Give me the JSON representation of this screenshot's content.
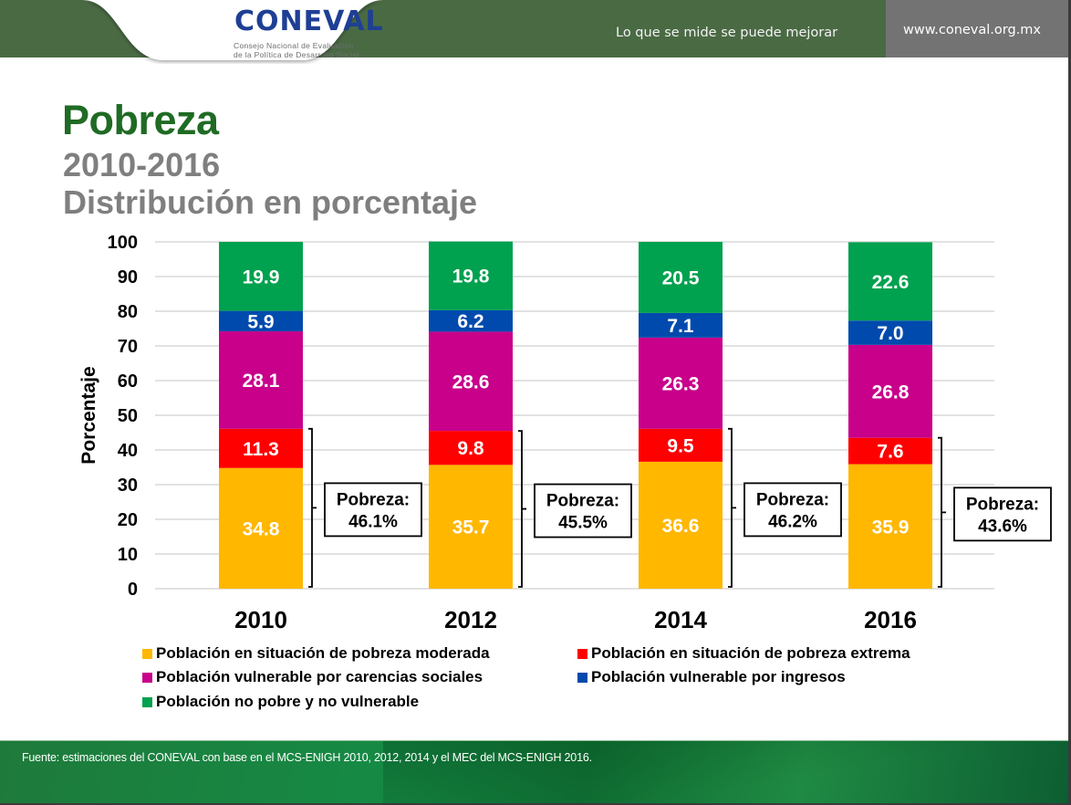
{
  "header": {
    "logo_main": "CONEVAL",
    "logo_sub_line1": "Consejo Nacional de Evaluación",
    "logo_sub_line2": "de la Política de Desarrollo Social",
    "tagline": "Lo que se mide se puede mejorar",
    "website": "www.coneval.org.mx",
    "colors": {
      "header_green": "#4a6a44",
      "header_gray": "#737373",
      "logo_blue": "#1e3f94",
      "logo_green": "#3cae48"
    }
  },
  "titles": {
    "title": "Pobreza",
    "subtitle_line1": "2010-2016",
    "subtitle_line2": "Distribución en porcentaje"
  },
  "chart_data": {
    "type": "bar",
    "stacked": true,
    "title": "Pobreza 2010-2016 Distribución en porcentaje",
    "xlabel": "",
    "ylabel": "Porcentaje",
    "ylim": [
      0,
      100
    ],
    "yticks": [
      0,
      10,
      20,
      30,
      40,
      50,
      60,
      70,
      80,
      90,
      100
    ],
    "grid": true,
    "categories": [
      "2010",
      "2012",
      "2014",
      "2016"
    ],
    "series": [
      {
        "name": "Población en situación de pobreza moderada",
        "color": "#ffb700",
        "values": [
          34.8,
          35.7,
          36.6,
          35.9
        ]
      },
      {
        "name": "Población en situación de pobreza extrema",
        "color": "#ff0000",
        "values": [
          11.3,
          9.8,
          9.5,
          7.6
        ]
      },
      {
        "name": "Población vulnerable por carencias sociales",
        "color": "#c8008a",
        "values": [
          28.1,
          28.6,
          26.3,
          26.8
        ]
      },
      {
        "name": "Población vulnerable por ingresos",
        "color": "#004aad",
        "values": [
          5.9,
          6.2,
          7.1,
          7.0
        ]
      },
      {
        "name": "Población no pobre y no vulnerable",
        "color": "#00a14f",
        "values": [
          19.9,
          19.8,
          20.5,
          22.6
        ]
      }
    ],
    "annotations": [
      {
        "category": "2010",
        "label": "Pobreza:",
        "value": "46.1%"
      },
      {
        "category": "2012",
        "label": "Pobreza:",
        "value": "45.5%"
      },
      {
        "category": "2014",
        "label": "Pobreza:",
        "value": "46.2%"
      },
      {
        "category": "2016",
        "label": "Pobreza:",
        "value": "43.6%"
      }
    ],
    "legend_position": "bottom"
  },
  "legend": [
    {
      "label": "Población en situación de pobreza moderada",
      "color": "#ffb700"
    },
    {
      "label": "Población en situación de pobreza extrema",
      "color": "#ff0000"
    },
    {
      "label": "Población vulnerable por carencias sociales",
      "color": "#c8008a"
    },
    {
      "label": "Población vulnerable por ingresos",
      "color": "#004aad"
    },
    {
      "label": "Población no pobre y no vulnerable",
      "color": "#00a14f"
    }
  ],
  "footer": {
    "source": "Fuente: estimaciones del CONEVAL con base en el MCS-ENIGH 2010, 2012, 2014 y el MEC del MCS-ENIGH 2016."
  }
}
